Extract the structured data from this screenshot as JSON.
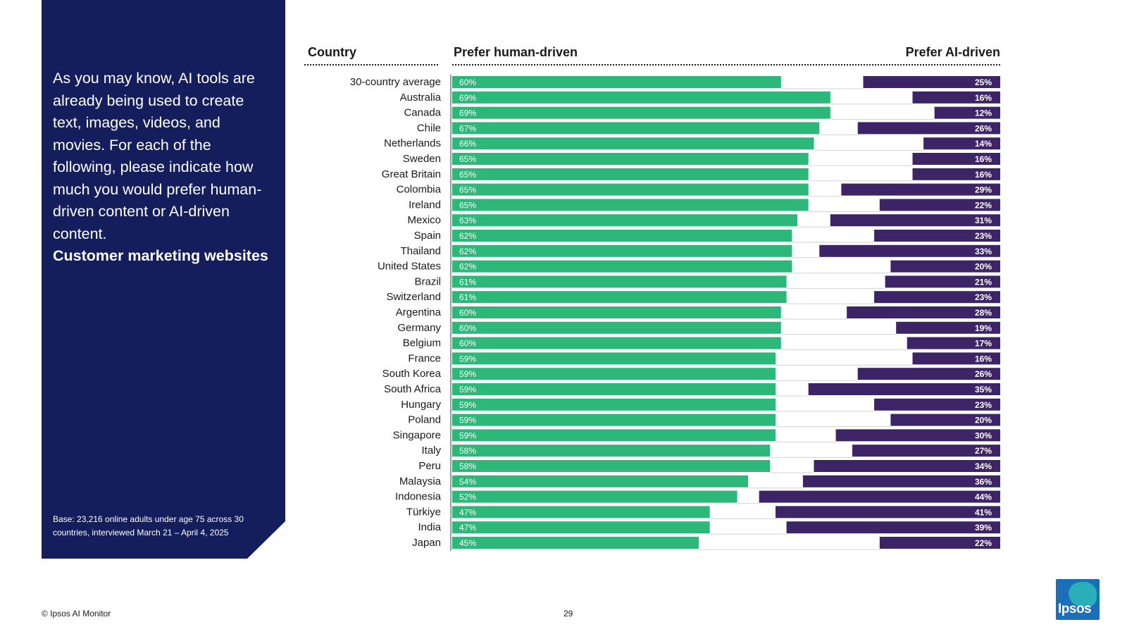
{
  "panel": {
    "question": "As you may know, AI tools are already being used to create text, images, videos, and movies. For each of the following, please indicate how much you would prefer human-driven content or AI-driven content.",
    "question_title": "Customer marketing websites",
    "base_note": "Base: 23,216 online adults under age 75 across 30 countries, interviewed March 21 – April 4, 2025"
  },
  "footer": {
    "copyright": "© Ipsos AI Monitor",
    "page_number": "29",
    "logo_text": "Ipsos"
  },
  "colors": {
    "panel": "#141e5c",
    "human": "#2db87a",
    "ai": "#3d2466"
  },
  "chart_data": {
    "type": "bar",
    "orientation": "horizontal",
    "headers": {
      "country": "Country",
      "human": "Prefer human-driven",
      "ai": "Prefer AI-driven"
    },
    "unit": "%",
    "categories": [
      "30-country average",
      "Australia",
      "Canada",
      "Chile",
      "Netherlands",
      "Sweden",
      "Great Britain",
      "Colombia",
      "Ireland",
      "Mexico",
      "Spain",
      "Thailand",
      "United States",
      "Brazil",
      "Switzerland",
      "Argentina",
      "Germany",
      "Belgium",
      "France",
      "South Korea",
      "South Africa",
      "Hungary",
      "Poland",
      "Singapore",
      "Italy",
      "Peru",
      "Malaysia",
      "Indonesia",
      "Türkiye",
      "India",
      "Japan"
    ],
    "series": [
      {
        "name": "Prefer human-driven",
        "values": [
          60,
          69,
          69,
          67,
          66,
          65,
          65,
          65,
          65,
          63,
          62,
          62,
          62,
          61,
          61,
          60,
          60,
          60,
          59,
          59,
          59,
          59,
          59,
          59,
          58,
          58,
          54,
          52,
          47,
          47,
          45
        ]
      },
      {
        "name": "Prefer AI-driven",
        "values": [
          25,
          16,
          12,
          26,
          14,
          16,
          16,
          29,
          22,
          31,
          23,
          33,
          20,
          21,
          23,
          28,
          19,
          17,
          16,
          26,
          35,
          23,
          20,
          30,
          27,
          34,
          36,
          44,
          41,
          39,
          22
        ]
      }
    ],
    "xlim": [
      0,
      100
    ]
  }
}
